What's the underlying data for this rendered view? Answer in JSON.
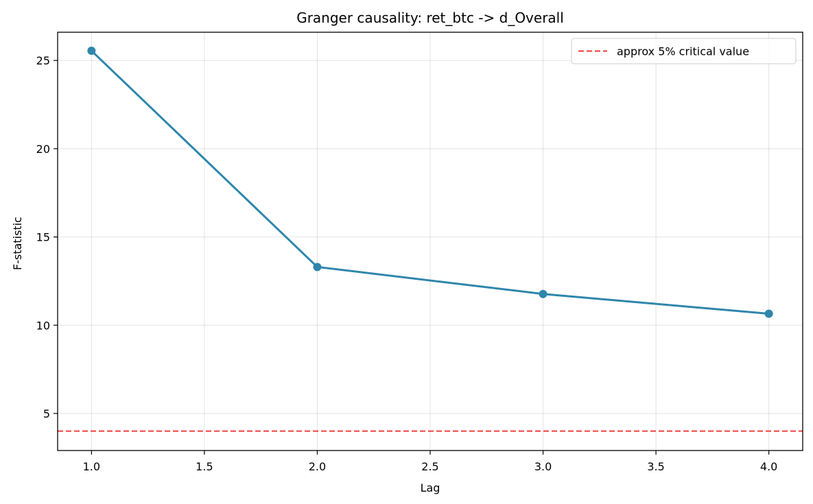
{
  "chart_data": {
    "type": "line",
    "title": "Granger causality: ret_btc -> d_Overall",
    "xlabel": "Lag",
    "ylabel": "F-statistic",
    "xlim": [
      0.85,
      4.15
    ],
    "ylim": [
      2.9,
      26.6
    ],
    "xticks": [
      1.0,
      1.5,
      2.0,
      2.5,
      3.0,
      3.5,
      4.0
    ],
    "xtick_labels": [
      "1.0",
      "1.5",
      "2.0",
      "2.5",
      "3.0",
      "3.5",
      "4.0"
    ],
    "yticks": [
      5,
      10,
      15,
      20,
      25
    ],
    "ytick_labels": [
      "5",
      "10",
      "15",
      "20",
      "25"
    ],
    "grid": true,
    "legend_position": "top-right",
    "series": [
      {
        "x": [
          1,
          2,
          3,
          4
        ],
        "y": [
          25.55,
          13.3,
          11.77,
          10.65
        ],
        "color": "#2E86AB",
        "marker": "circle"
      }
    ],
    "reference_lines": [
      {
        "orientation": "horizontal",
        "value": 4.0,
        "name": "approx 5% critical value",
        "color": "#F04A4A",
        "style": "dashed"
      }
    ]
  }
}
